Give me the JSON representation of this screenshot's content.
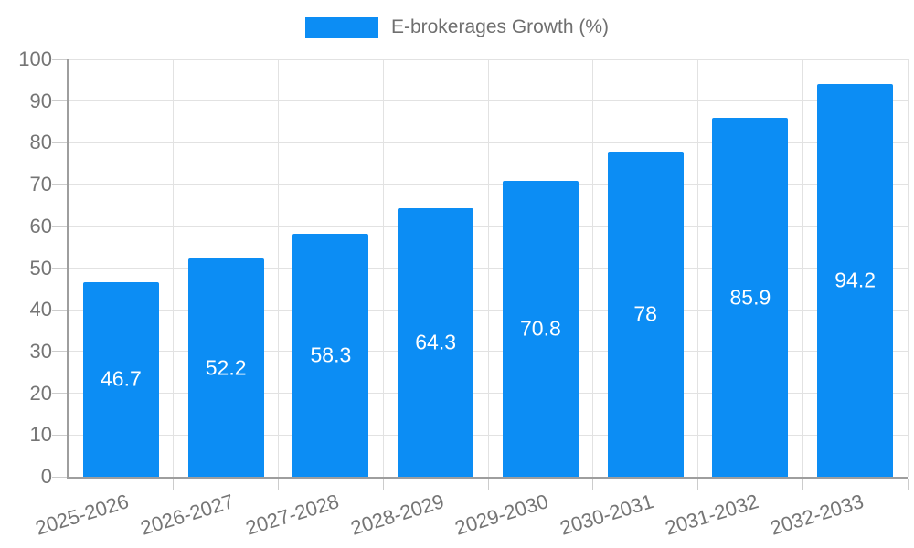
{
  "chart_data": {
    "type": "bar",
    "title": "",
    "legend_label": "E-brokerages Growth (%)",
    "legend_position": "top-center",
    "categories": [
      "2025-2026",
      "2026-2027",
      "2027-2028",
      "2028-2029",
      "2029-2030",
      "2030-2031",
      "2031-2032",
      "2032-2033"
    ],
    "values": [
      46.7,
      52.2,
      58.3,
      64.3,
      70.8,
      78,
      85.9,
      94.2
    ],
    "value_labels": [
      "46.7",
      "52.2",
      "58.3",
      "64.3",
      "70.8",
      "78",
      "85.9",
      "94.2"
    ],
    "xlabel": "",
    "ylabel": "",
    "ylim": [
      0,
      100
    ],
    "ytick_step": 10,
    "yticks": [
      "0",
      "10",
      "20",
      "30",
      "40",
      "50",
      "60",
      "70",
      "80",
      "90",
      "100"
    ],
    "grid": true,
    "x_label_rotation_deg": -17,
    "colors": {
      "bar": "#0C8DF4",
      "bar_label": "#FFFFFF",
      "axis": "#9E9E9E",
      "grid": "#E2E2E2",
      "tick": "#CCCCCC",
      "text": "#757575",
      "legend_text": "#6F6F6F",
      "background": "#FFFFFF"
    }
  }
}
